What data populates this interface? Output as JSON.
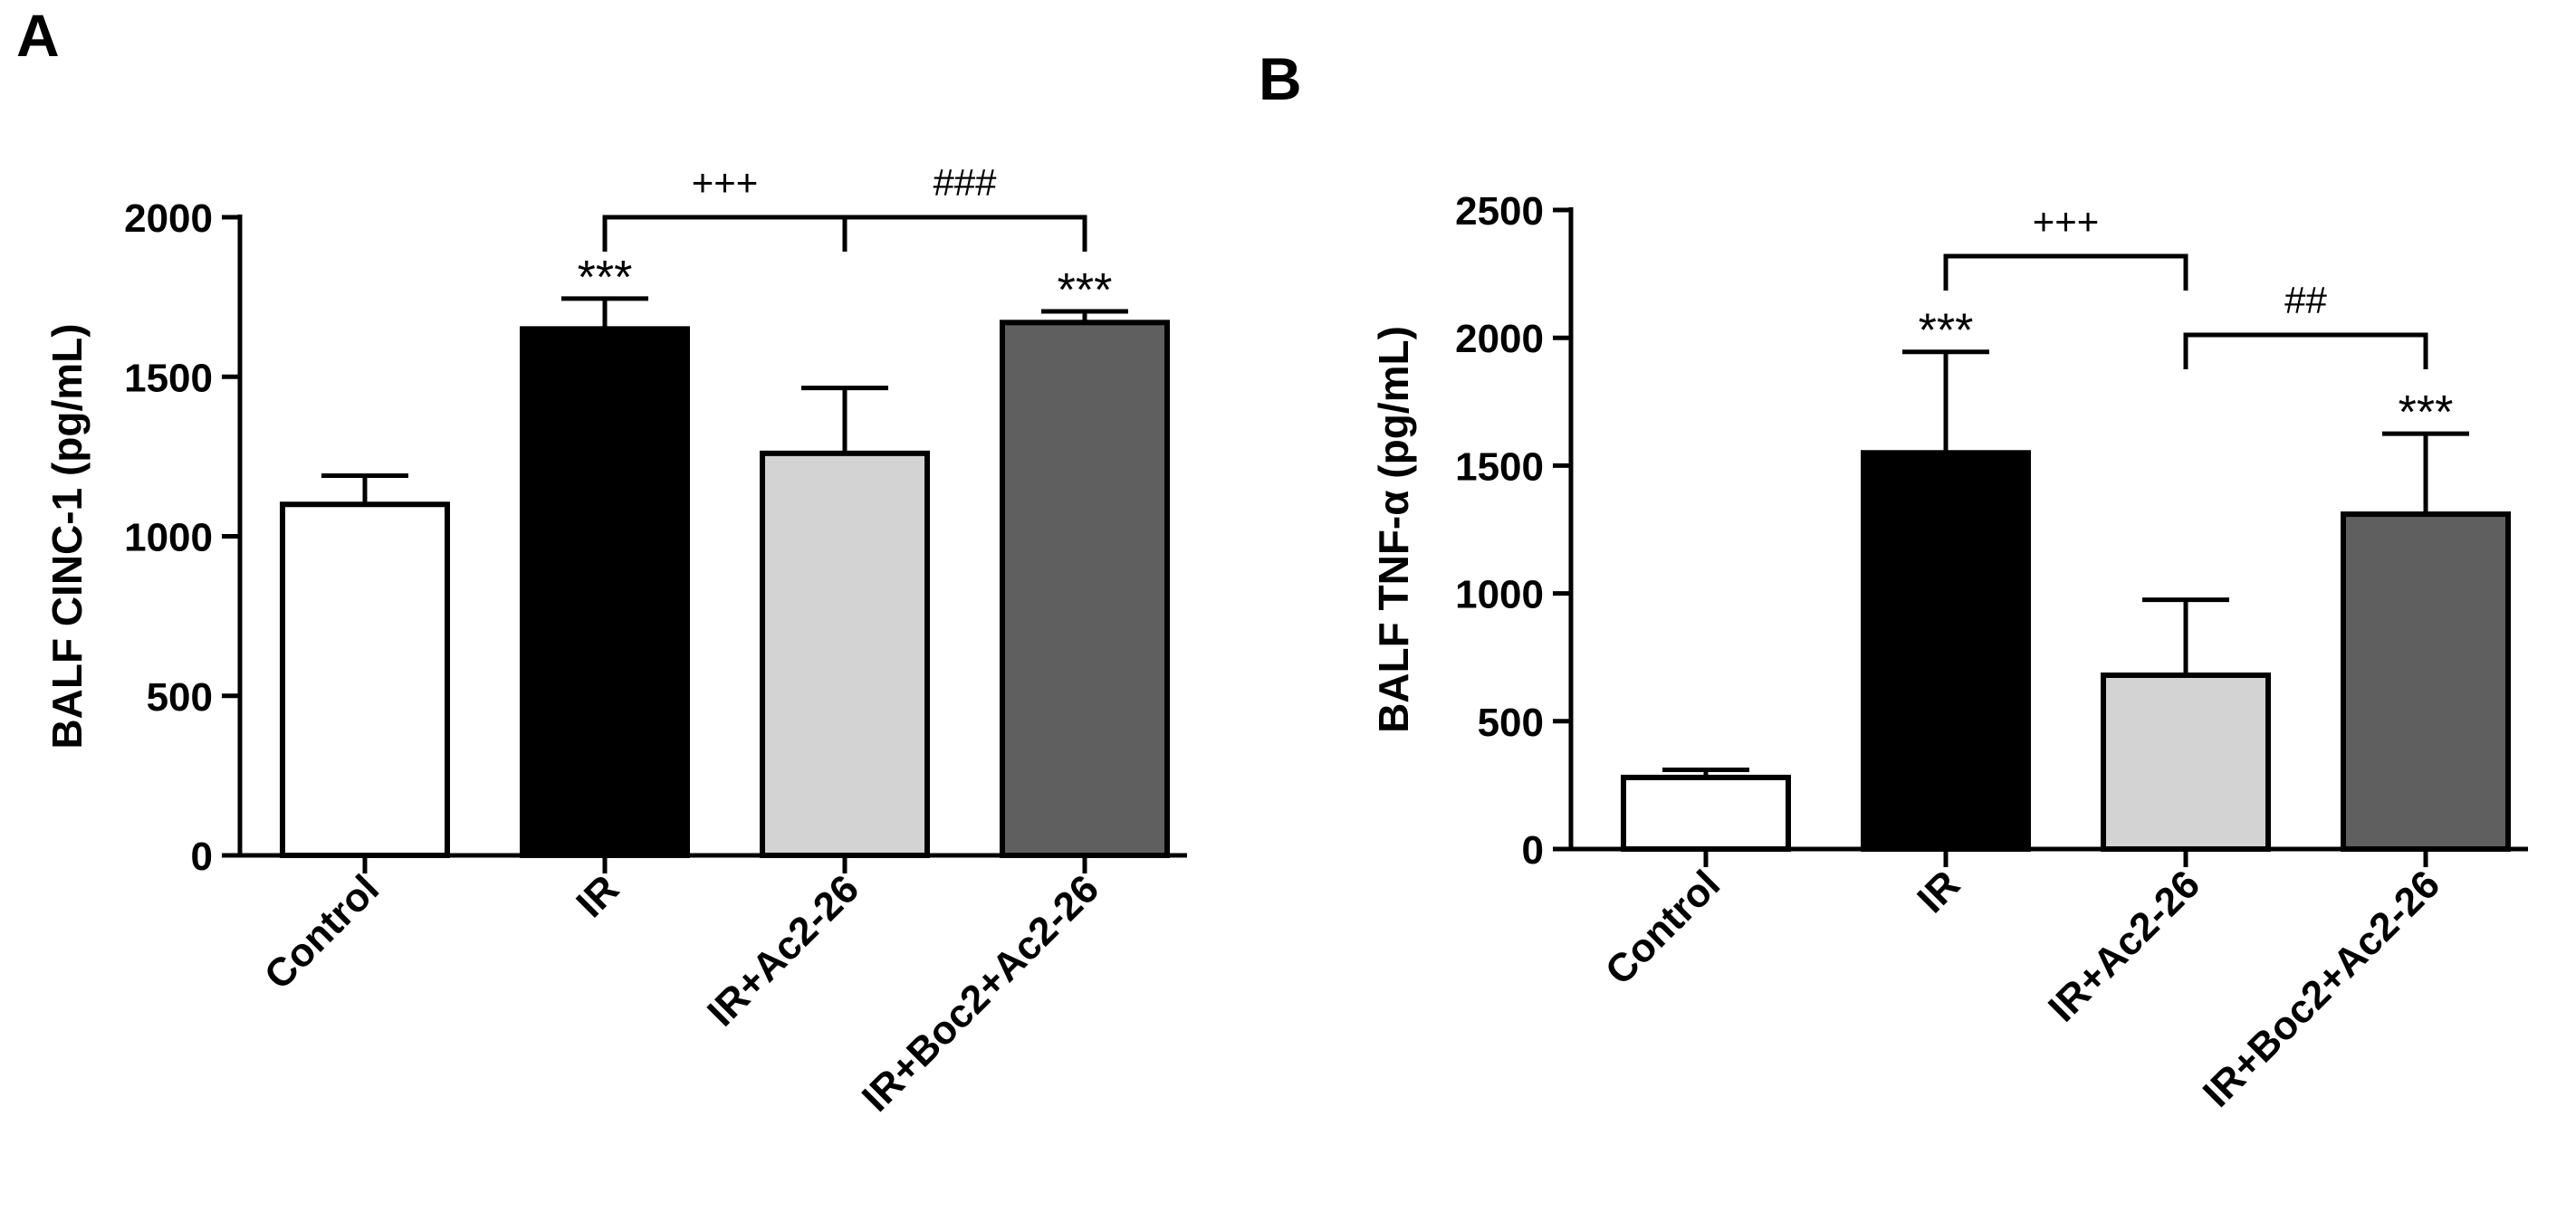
{
  "chart_data": [
    {
      "type": "bar",
      "panel_label": "A",
      "categories": [
        "Control",
        "IR",
        "IR+Ac2-26",
        "IR+Boc2+Ac2-26"
      ],
      "values": [
        1100,
        1650,
        1260,
        1670
      ],
      "errors": [
        90,
        95,
        205,
        35
      ],
      "colors": [
        "#ffffff",
        "#000000",
        "#d3d3d3",
        "#5f5f5f"
      ],
      "ylabel": "BALF CINC-1 (pg/mL)",
      "xlabel": "",
      "ylim": [
        0,
        2000
      ],
      "yticks": [
        0,
        500,
        1000,
        1500,
        2000
      ],
      "annotations": [
        {
          "category_index": 1,
          "text": "***"
        },
        {
          "category_index": 3,
          "text": "***"
        }
      ],
      "brackets": [
        {
          "from": 1,
          "to": 2,
          "text": "+++"
        },
        {
          "from": 2,
          "to": 3,
          "text": "###"
        }
      ]
    },
    {
      "type": "bar",
      "panel_label": "B",
      "categories": [
        "Control",
        "IR",
        "IR+Ac2-26",
        "IR+Boc2+Ac2-26"
      ],
      "values": [
        280,
        1550,
        680,
        1310
      ],
      "errors": [
        30,
        395,
        295,
        315
      ],
      "colors": [
        "#ffffff",
        "#000000",
        "#d3d3d3",
        "#5f5f5f"
      ],
      "ylabel": "BALF TNF-α (pg/mL)",
      "xlabel": "",
      "ylim": [
        0,
        2500
      ],
      "yticks": [
        0,
        500,
        1000,
        1500,
        2000,
        2500
      ],
      "annotations": [
        {
          "category_index": 1,
          "text": "***"
        },
        {
          "category_index": 3,
          "text": "***"
        }
      ],
      "brackets": [
        {
          "from": 1,
          "to": 2,
          "text": "+++"
        },
        {
          "from": 2,
          "to": 3,
          "text": "##"
        }
      ]
    }
  ]
}
